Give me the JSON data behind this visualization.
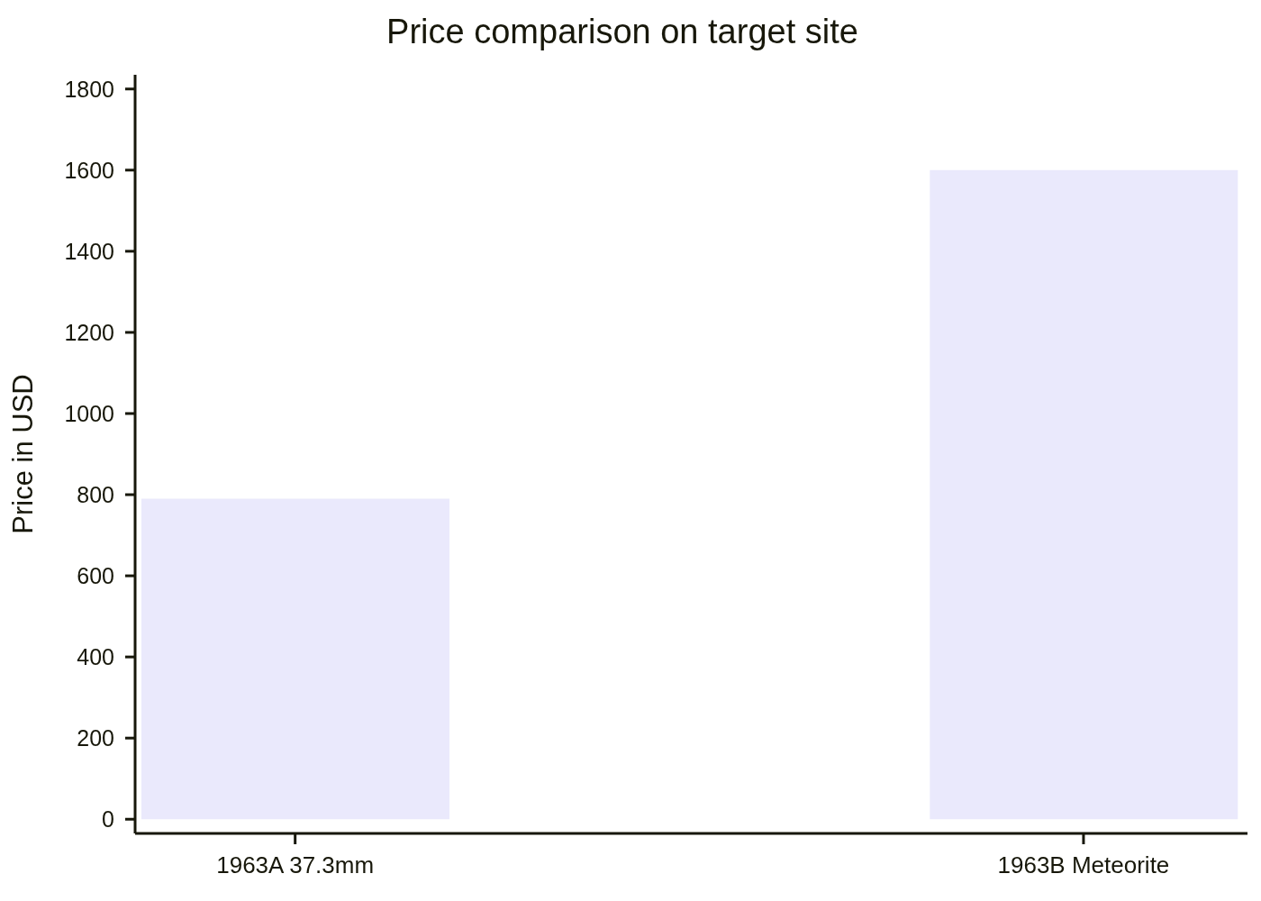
{
  "chart_data": {
    "type": "bar",
    "title": "Price comparison on target site",
    "ylabel": "Price in USD",
    "categories": [
      "1963A 37.3mm",
      "1963B Meteorite"
    ],
    "values": [
      790,
      1600
    ],
    "color": "#eae9fc",
    "ylim": [
      -35,
      1835
    ],
    "yticks": [
      0,
      200,
      400,
      600,
      800,
      1000,
      1200,
      1400,
      1600,
      1800
    ]
  }
}
